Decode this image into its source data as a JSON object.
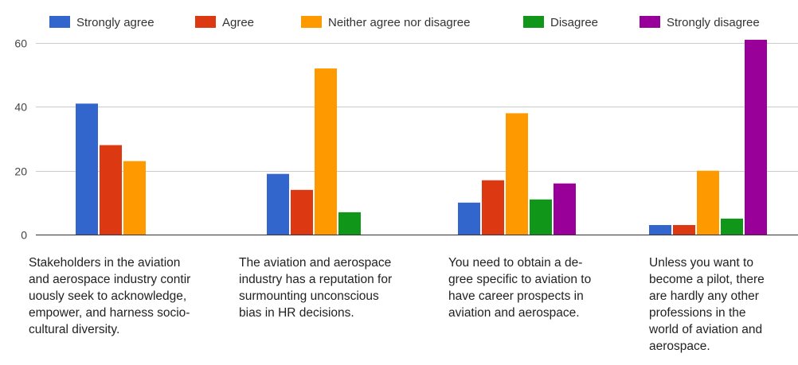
{
  "chart_data": {
    "type": "bar",
    "categories": [
      "Stakeholders in the aviation\nand aerospace industry contir\nuously seek to acknowledge,\nempower, and harness socio-\ncultural diversity.",
      "The aviation and aerospace\nindustry has a reputation for\nsurmounting unconscious\nbias in HR decisions.",
      "You need to obtain a de-\ngree specific to aviation to\nhave career prospects in\naviation and aerospace.",
      "Unless you want to\nbecome a pilot, there\nare hardly any other\nprofessions in the\nworld of aviation and\naerospace."
    ],
    "series": [
      {
        "name": "Strongly agree",
        "color": "#3366cc",
        "values": [
          41,
          19,
          10,
          3
        ]
      },
      {
        "name": "Agree",
        "color": "#dc3912",
        "values": [
          28,
          14,
          17,
          3
        ]
      },
      {
        "name": "Neither agree nor disagree",
        "color": "#ff9900",
        "values": [
          23,
          52,
          38,
          20
        ]
      },
      {
        "name": "Disagree",
        "color": "#109618",
        "values": [
          0,
          7,
          11,
          5
        ]
      },
      {
        "name": "Strongly disagree",
        "color": "#990099",
        "values": [
          0,
          0,
          16,
          61
        ]
      }
    ],
    "y_ticks": [
      0,
      20,
      40,
      60
    ],
    "ylim": [
      0,
      61
    ],
    "grid": true,
    "legend_position": "top",
    "title": "",
    "xlabel": "",
    "ylabel": ""
  }
}
